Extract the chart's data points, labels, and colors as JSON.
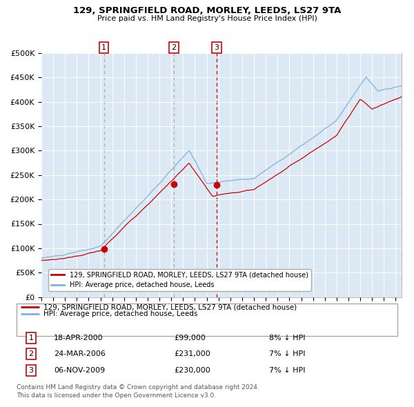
{
  "title1": "129, SPRINGFIELD ROAD, MORLEY, LEEDS, LS27 9TA",
  "title2": "Price paid vs. HM Land Registry's House Price Index (HPI)",
  "background_color": "#dce9f5",
  "plot_bg_color": "#dce9f5",
  "hpi_color": "#7ab3e0",
  "price_color": "#cc0000",
  "marker_color": "#cc0000",
  "ylim": [
    0,
    500000
  ],
  "yticks": [
    0,
    50000,
    100000,
    150000,
    200000,
    250000,
    300000,
    350000,
    400000,
    450000,
    500000
  ],
  "ytick_labels": [
    "£0",
    "£50K",
    "£100K",
    "£150K",
    "£200K",
    "£250K",
    "£300K",
    "£350K",
    "£400K",
    "£450K",
    "£500K"
  ],
  "sale1": {
    "date_label": "18-APR-2000",
    "price": 99000,
    "hpi_diff": "8% ↓ HPI",
    "vline_year": 2000.29
  },
  "sale2": {
    "date_label": "24-MAR-2006",
    "price": 231000,
    "hpi_diff": "7% ↓ HPI",
    "vline_year": 2006.22
  },
  "sale3": {
    "date_label": "06-NOV-2009",
    "price": 230000,
    "hpi_diff": "7% ↓ HPI",
    "vline_year": 2009.84
  },
  "legend_label1": "129, SPRINGFIELD ROAD, MORLEY, LEEDS, LS27 9TA (detached house)",
  "legend_label2": "HPI: Average price, detached house, Leeds",
  "footer1": "Contains HM Land Registry data © Crown copyright and database right 2024.",
  "footer2": "This data is licensed under the Open Government Licence v3.0.",
  "xmin": 1995,
  "xmax": 2025.5
}
